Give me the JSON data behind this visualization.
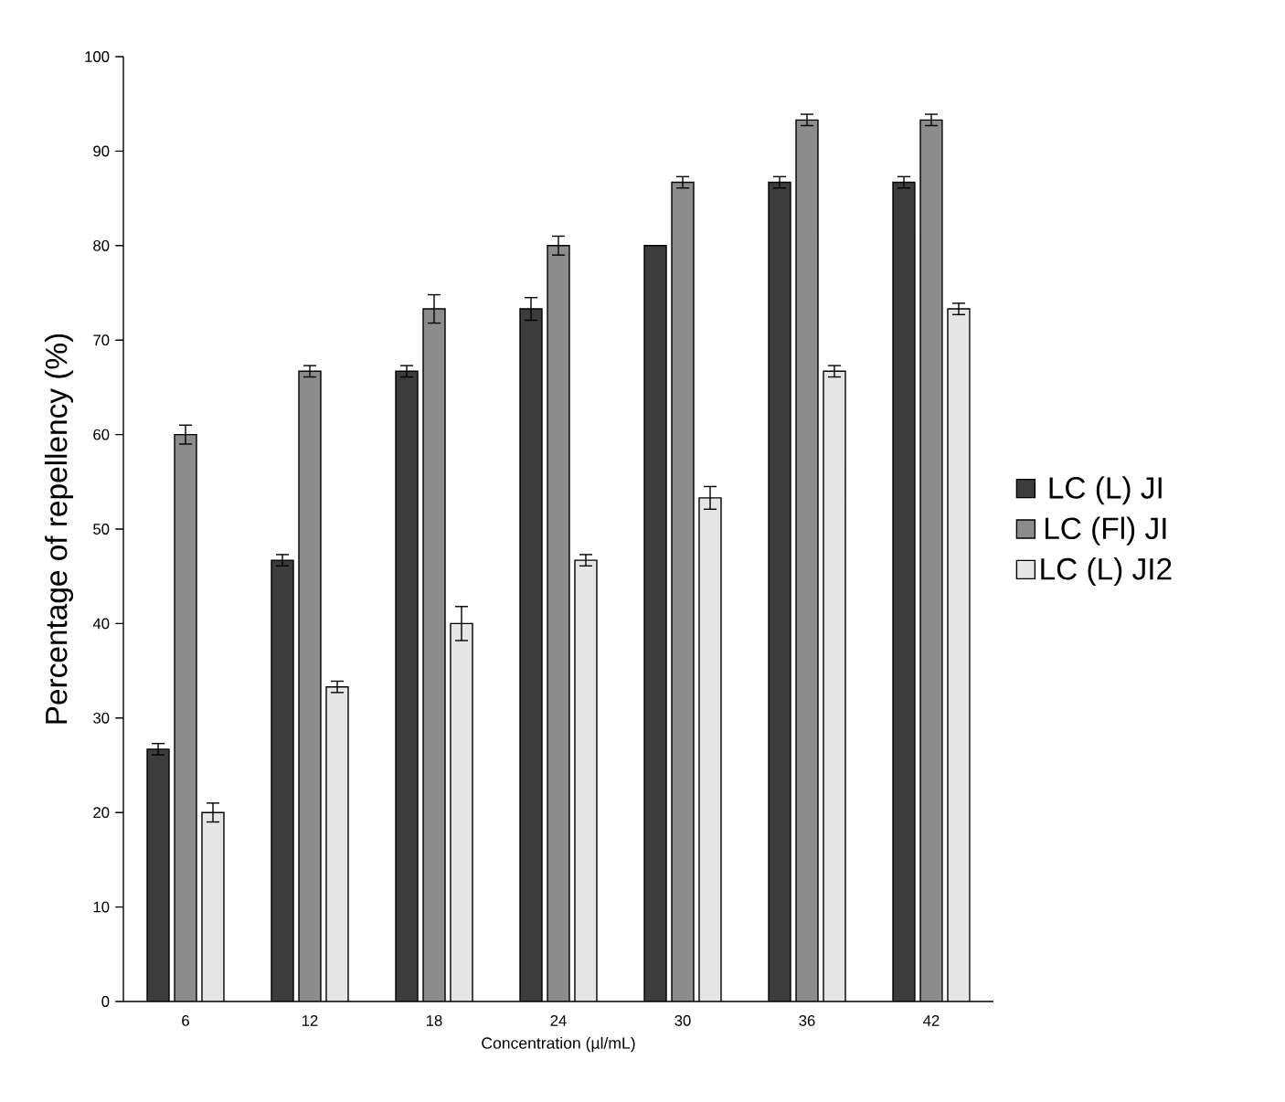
{
  "chart_data": {
    "type": "bar",
    "xlabel": "Concentration (µl/mL)",
    "ylabel": "Percentage of repellency (%)",
    "categories": [
      "6",
      "12",
      "18",
      "24",
      "30",
      "36",
      "42"
    ],
    "series": [
      {
        "name": "LC (L) JI",
        "color": "#3c3c3c",
        "values": [
          26.7,
          46.7,
          66.7,
          73.3,
          80,
          86.7,
          86.7
        ],
        "errors": [
          0.6,
          0.6,
          0.6,
          1.2,
          null,
          0.6,
          0.6
        ]
      },
      {
        "name": "LC (Fl) JI",
        "color": "#8c8c8c",
        "values": [
          60,
          66.7,
          73.3,
          80,
          86.7,
          93.3,
          93.3
        ],
        "errors": [
          1,
          0.6,
          1.5,
          1,
          0.6,
          0.6,
          0.6
        ]
      },
      {
        "name": "LC (L) JI2",
        "color": "#e6e6e6",
        "values": [
          20,
          33.3,
          40,
          46.7,
          53.3,
          66.7,
          73.3
        ],
        "errors": [
          1,
          0.6,
          1.8,
          0.6,
          1.2,
          0.6,
          0.6
        ]
      }
    ],
    "ylim": [
      0,
      100
    ],
    "yticks": [
      0,
      10,
      20,
      30,
      40,
      50,
      60,
      70,
      80,
      90,
      100
    ],
    "grid": false,
    "legend": "right"
  }
}
